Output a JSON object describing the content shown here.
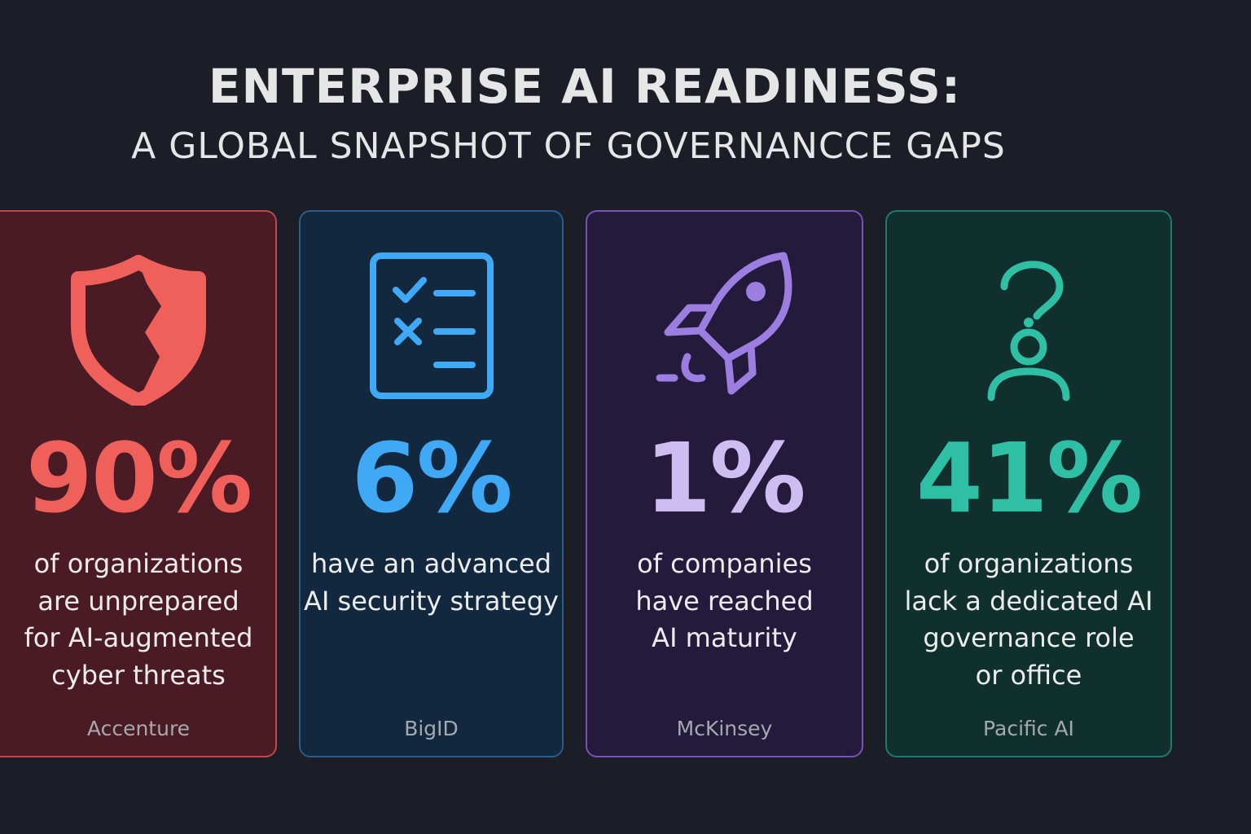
{
  "header": {
    "title": "ENTERPRISE AI READINESS:",
    "subtitle": "A GLOBAL SNAPSHOT OF GOVERNANCCE GAPS"
  },
  "cards": [
    {
      "icon": "broken-shield-icon",
      "color": "#f0605a",
      "stat": "90%",
      "lines": [
        "of organizations",
        "are unprepared",
        "for AI-augmented",
        "cyber threats"
      ],
      "source": "Accenture"
    },
    {
      "icon": "checklist-icon",
      "color": "#3fa9f5",
      "stat": "6%",
      "lines": [
        "have an advanced",
        "AI security strategy"
      ],
      "source": "BigID"
    },
    {
      "icon": "rocket-icon",
      "color": "#9b7ee0",
      "stat_color": "#cdbdf0",
      "stat": "1%",
      "lines": [
        "of companies",
        "have reached",
        "AI maturity"
      ],
      "source": "McKinsey"
    },
    {
      "icon": "question-person-icon",
      "color": "#2ebfa5",
      "stat": "41%",
      "lines": [
        "of organizations",
        "lack a dedicated AI",
        "governance role",
        "or office"
      ],
      "source": "Pacific AI"
    }
  ]
}
